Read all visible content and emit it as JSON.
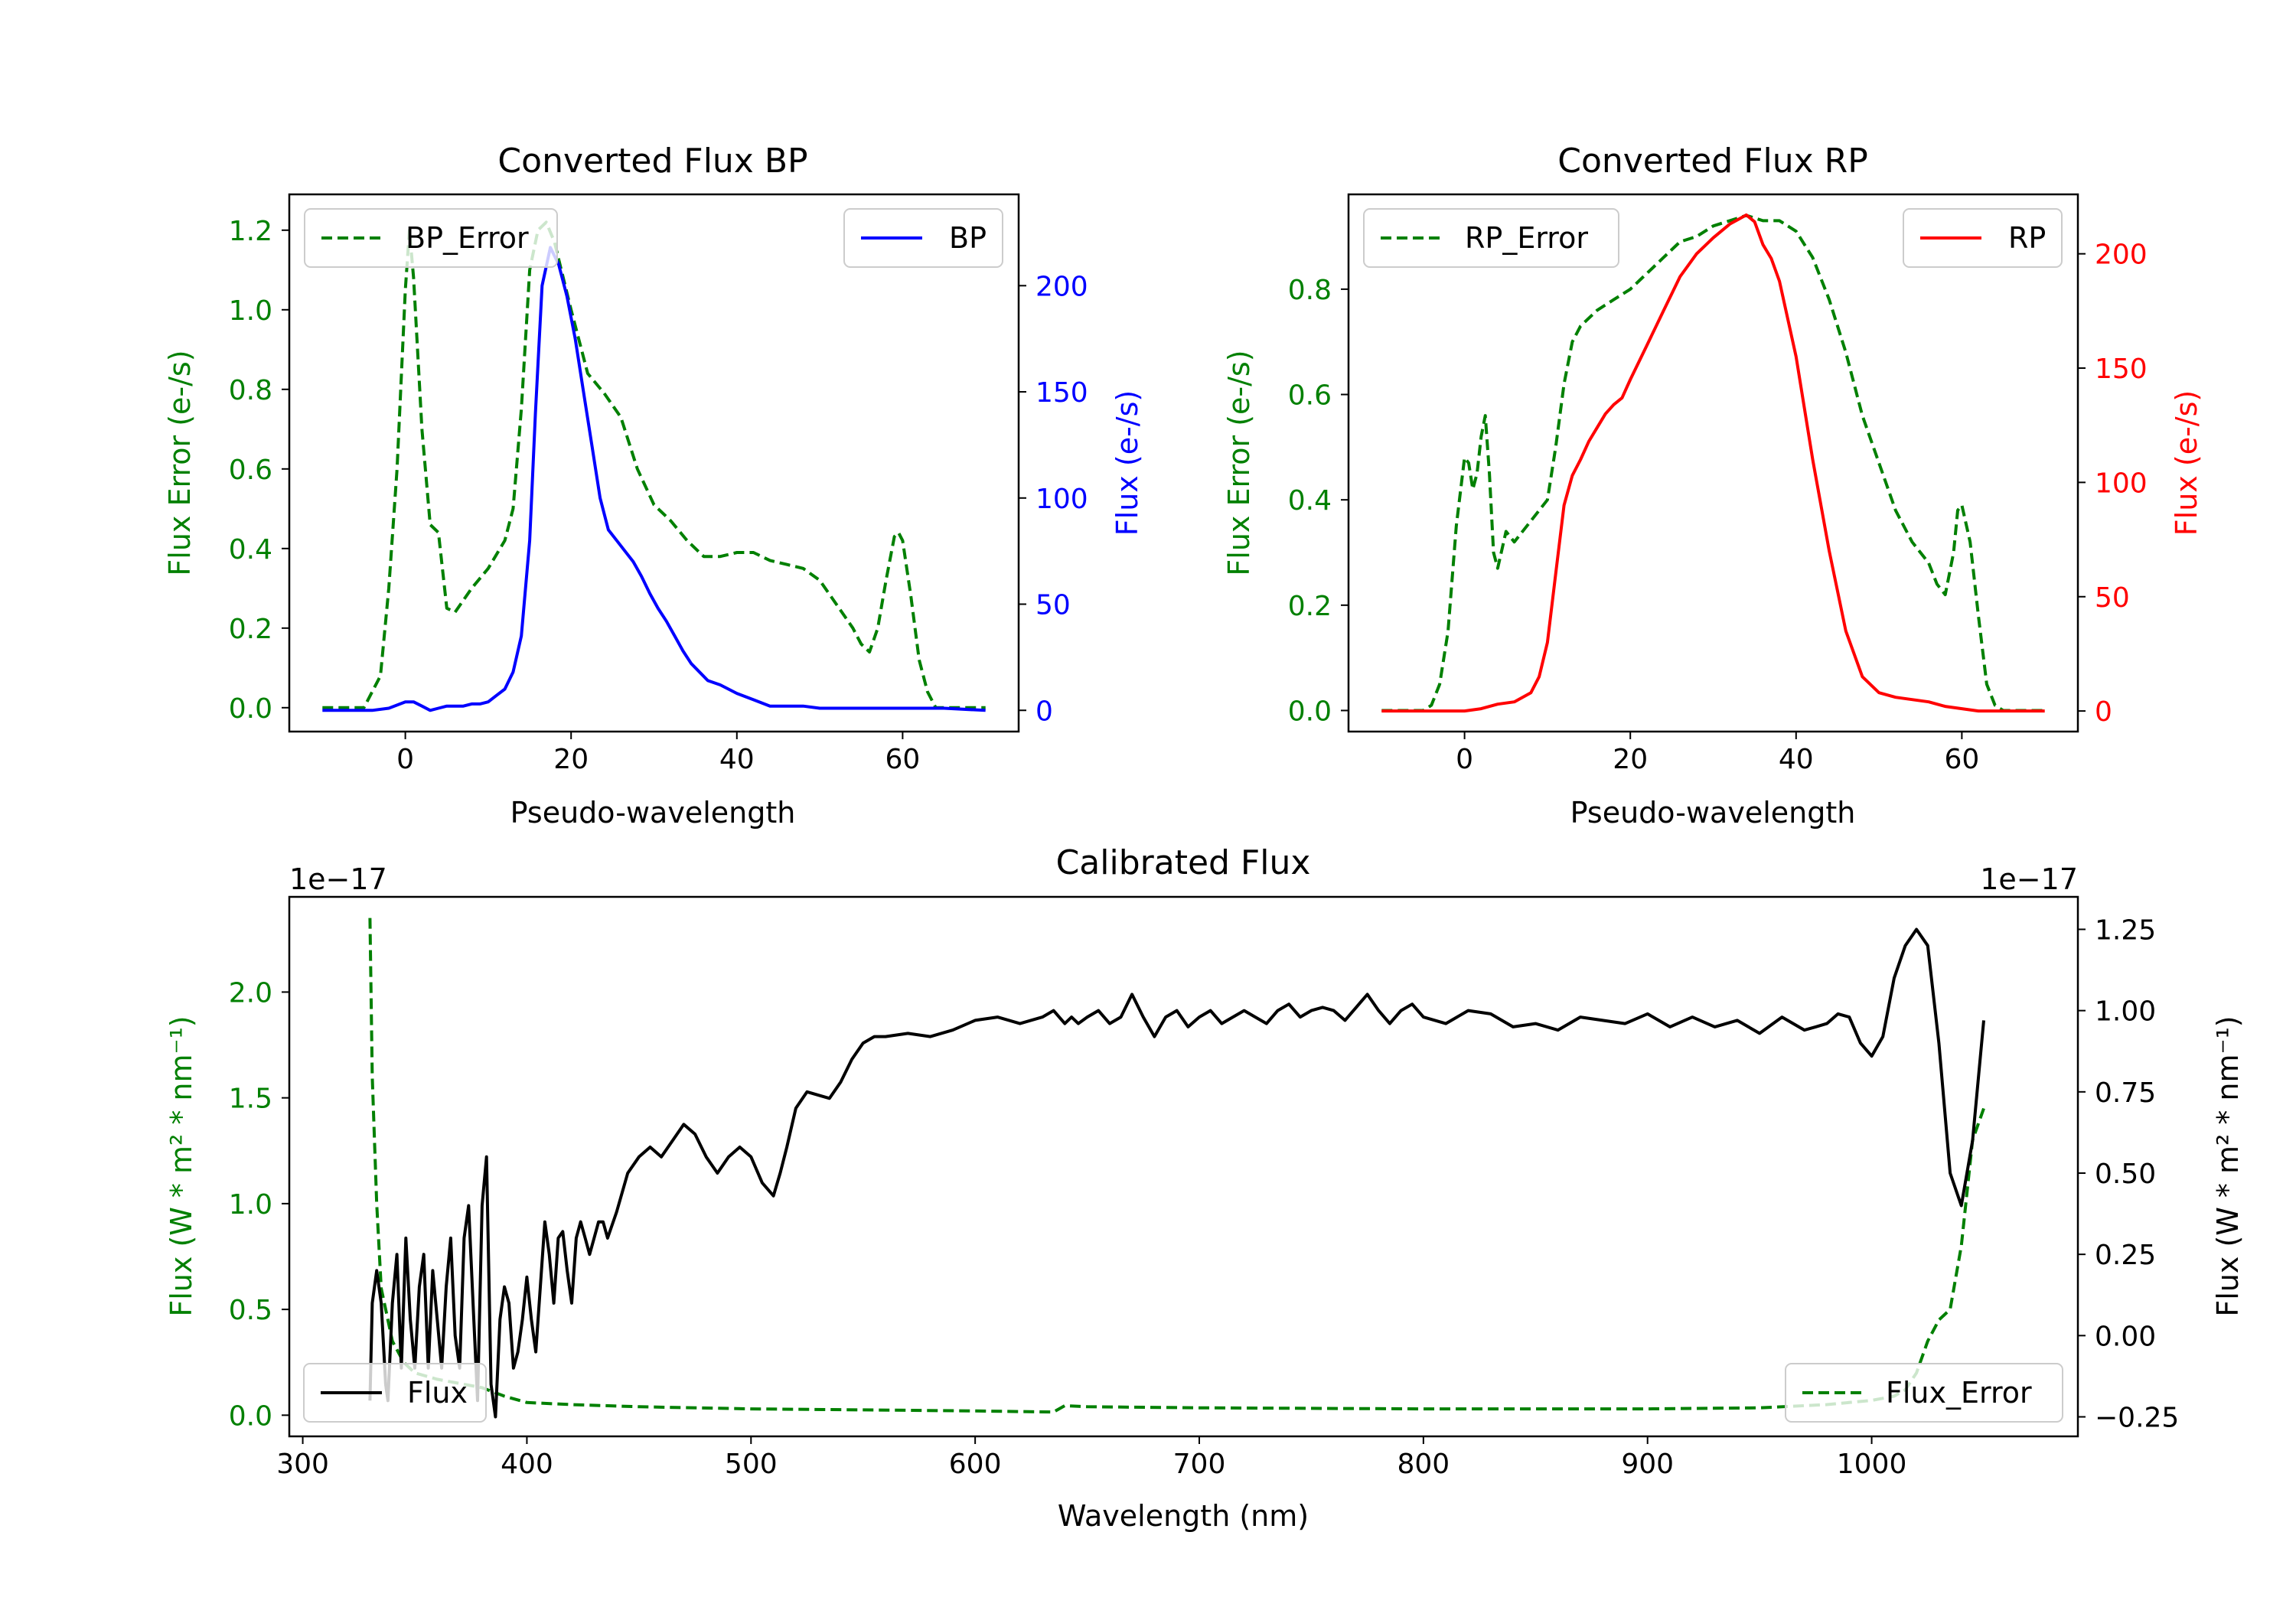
{
  "figure": {
    "colors": {
      "green": "#008000",
      "blue": "#0000ff",
      "red": "#ff0000",
      "black": "#000000"
    }
  },
  "chart_data": [
    {
      "type": "line",
      "title": "Converted Flux BP",
      "xlabel": "Pseudo-wavelength",
      "ylabel_left": "Flux Error (e-/s)",
      "ylabel_right": "Flux (e-/s)",
      "xlim": [
        -14,
        74
      ],
      "ylim_left": [
        -0.06,
        1.29
      ],
      "ylim_right": [
        -10,
        243
      ],
      "xticks": [
        "0",
        "20",
        "40",
        "60"
      ],
      "yticks_left": [
        "0.0",
        "0.2",
        "0.4",
        "0.6",
        "0.8",
        "1.0",
        "1.2"
      ],
      "yticks_right": [
        "0",
        "50",
        "100",
        "150",
        "200"
      ],
      "legend_left": {
        "label": "BP_Error",
        "placement": "upper left"
      },
      "legend_right": {
        "label": "BP",
        "placement": "upper right"
      },
      "series": [
        {
          "name": "BP_Error",
          "axis": "left",
          "color": "#008000",
          "style": "dashed",
          "x": [
            -10,
            -5,
            -3,
            -2,
            -1,
            0,
            0.5,
            1,
            2,
            3,
            4,
            5,
            6,
            8,
            10,
            12,
            13,
            14,
            15,
            16,
            17,
            18,
            20,
            22,
            24,
            26,
            28,
            30,
            32,
            34,
            36,
            38,
            40,
            42,
            44,
            46,
            48,
            50,
            52,
            54,
            55,
            56,
            57,
            58,
            59,
            59.5,
            60,
            61,
            62,
            63,
            64,
            65,
            70
          ],
          "y": [
            0.0,
            0.0,
            0.08,
            0.3,
            0.6,
            1.05,
            1.2,
            1.08,
            0.7,
            0.46,
            0.44,
            0.25,
            0.24,
            0.3,
            0.35,
            0.42,
            0.5,
            0.75,
            1.1,
            1.2,
            1.22,
            1.17,
            1.0,
            0.84,
            0.79,
            0.73,
            0.6,
            0.51,
            0.47,
            0.42,
            0.38,
            0.38,
            0.39,
            0.39,
            0.37,
            0.36,
            0.35,
            0.32,
            0.26,
            0.2,
            0.16,
            0.14,
            0.2,
            0.32,
            0.43,
            0.44,
            0.42,
            0.28,
            0.12,
            0.04,
            0.0,
            0.0,
            0.0
          ]
        },
        {
          "name": "BP",
          "axis": "right",
          "color": "#0000ff",
          "style": "solid",
          "x": [
            -10,
            -4,
            -2,
            0,
            1,
            2,
            3,
            4,
            5,
            6,
            7,
            8,
            9,
            10,
            11,
            12,
            13,
            14,
            15,
            15.7,
            16.5,
            17.5,
            18.5,
            19.5,
            20.5,
            21.5,
            22.5,
            23.5,
            24.5,
            25.5,
            26.5,
            27.5,
            28.5,
            29.5,
            30.5,
            31.5,
            32.5,
            33.5,
            34.5,
            35.5,
            36.5,
            38,
            40,
            42,
            44,
            46,
            48,
            50,
            55,
            60,
            65,
            70
          ],
          "y": [
            0,
            0,
            1,
            4,
            4,
            2,
            0,
            1,
            2,
            2,
            2,
            3,
            3,
            4,
            7,
            10,
            18,
            35,
            80,
            140,
            200,
            218,
            210,
            195,
            175,
            150,
            125,
            100,
            85,
            80,
            75,
            70,
            63,
            55,
            48,
            42,
            35,
            28,
            22,
            18,
            14,
            12,
            8,
            5,
            2,
            2,
            2,
            1,
            1,
            1,
            1,
            0
          ]
        }
      ]
    },
    {
      "type": "line",
      "title": "Converted Flux RP",
      "xlabel": "Pseudo-wavelength",
      "ylabel_left": "Flux Error (e-/s)",
      "ylabel_right": "Flux (e-/s)",
      "xlim": [
        -14,
        74
      ],
      "ylim_left": [
        -0.04,
        0.98
      ],
      "ylim_right": [
        -9,
        226
      ],
      "xticks": [
        "0",
        "20",
        "40",
        "60"
      ],
      "yticks_left": [
        "0.0",
        "0.2",
        "0.4",
        "0.6",
        "0.8"
      ],
      "yticks_right": [
        "0",
        "50",
        "100",
        "150",
        "200"
      ],
      "legend_left": {
        "label": "RP_Error",
        "placement": "upper left"
      },
      "legend_right": {
        "label": "RP",
        "placement": "upper right"
      },
      "series": [
        {
          "name": "RP_Error",
          "axis": "right_none",
          "axis_ref": "left",
          "color": "#008000",
          "style": "dashed",
          "x": [
            -10,
            -5,
            -4,
            -3,
            -2,
            -1,
            0,
            0.5,
            1,
            1.5,
            2,
            2.5,
            3,
            3.5,
            4,
            5,
            6,
            8,
            10,
            11,
            12,
            13,
            14,
            16,
            18,
            20,
            22,
            24,
            26,
            28,
            30,
            32,
            34,
            36,
            38,
            40,
            42,
            44,
            46,
            48,
            50,
            52,
            54,
            56,
            57,
            58,
            59,
            59.5,
            60,
            61,
            62,
            63,
            64,
            65,
            70
          ],
          "y": [
            0.0,
            0.0,
            0.01,
            0.05,
            0.15,
            0.35,
            0.48,
            0.47,
            0.42,
            0.45,
            0.52,
            0.56,
            0.45,
            0.3,
            0.27,
            0.34,
            0.32,
            0.36,
            0.4,
            0.5,
            0.62,
            0.7,
            0.73,
            0.76,
            0.78,
            0.8,
            0.83,
            0.86,
            0.89,
            0.9,
            0.92,
            0.93,
            0.94,
            0.93,
            0.93,
            0.91,
            0.86,
            0.78,
            0.68,
            0.56,
            0.47,
            0.38,
            0.32,
            0.28,
            0.24,
            0.22,
            0.3,
            0.38,
            0.39,
            0.32,
            0.18,
            0.05,
            0.01,
            0.0,
            0.0
          ]
        },
        {
          "name": "RP",
          "axis": "right",
          "color": "#ff0000",
          "style": "solid",
          "x": [
            -10,
            -5,
            0,
            2,
            4,
            6,
            8,
            9,
            10,
            11,
            12,
            13,
            14,
            15,
            16,
            17,
            18,
            19,
            20,
            22,
            24,
            26,
            28,
            30,
            32,
            33,
            34,
            35,
            36,
            37,
            38,
            40,
            42,
            44,
            46,
            48,
            50,
            52,
            54,
            56,
            58,
            60,
            62,
            65,
            70
          ],
          "y": [
            0,
            0,
            0,
            1,
            3,
            4,
            8,
            15,
            30,
            60,
            90,
            103,
            110,
            118,
            124,
            130,
            134,
            137,
            145,
            160,
            175,
            190,
            200,
            207,
            213,
            215,
            217,
            214,
            204,
            198,
            188,
            155,
            110,
            70,
            35,
            15,
            8,
            6,
            5,
            4,
            2,
            1,
            0,
            0,
            0
          ]
        }
      ]
    },
    {
      "type": "line",
      "title": "Calibrated Flux",
      "xlabel": "Wavelength (nm)",
      "ylabel_left": "Flux (W * m² * nm⁻¹)",
      "ylabel_right": "Flux (W * m² * nm⁻¹)",
      "xlim": [
        294,
        1092
      ],
      "ylim_left": [
        -0.1,
        2.45
      ],
      "ylim_right": [
        -0.31,
        1.35
      ],
      "xticks": [
        "300",
        "400",
        "500",
        "600",
        "700",
        "800",
        "900",
        "1000"
      ],
      "yticks_left": [
        "0.0",
        "0.5",
        "1.0",
        "1.5",
        "2.0"
      ],
      "yticks_right": [
        "−0.25",
        "0.00",
        "0.25",
        "0.50",
        "0.75",
        "1.00",
        "1.25"
      ],
      "offset_left": "1e−17",
      "offset_right": "1e−17",
      "legend_left": {
        "label": "Flux",
        "placement": "lower left"
      },
      "legend_right": {
        "label": "Flux_Error",
        "placement": "lower right"
      },
      "series": [
        {
          "name": "Flux_Error",
          "axis": "left",
          "color": "#008000",
          "style": "dashed",
          "x": [
            330,
            331,
            333,
            335,
            340,
            345,
            350,
            360,
            370,
            380,
            390,
            400,
            420,
            450,
            500,
            550,
            600,
            635,
            640,
            650,
            700,
            800,
            900,
            950,
            980,
            1000,
            1010,
            1015,
            1020,
            1025,
            1030,
            1035,
            1040,
            1045,
            1050
          ],
          "y": [
            2.35,
            1.6,
            1.0,
            0.6,
            0.35,
            0.25,
            0.2,
            0.17,
            0.15,
            0.13,
            0.09,
            0.06,
            0.05,
            0.04,
            0.03,
            0.025,
            0.02,
            0.015,
            0.045,
            0.04,
            0.035,
            0.03,
            0.03,
            0.035,
            0.05,
            0.07,
            0.09,
            0.12,
            0.2,
            0.35,
            0.45,
            0.5,
            0.8,
            1.3,
            1.45
          ]
        },
        {
          "name": "Flux",
          "axis": "right",
          "color": "#000000",
          "style": "solid",
          "x": [
            330,
            331,
            333,
            335,
            337,
            338,
            340,
            342,
            344,
            346,
            348,
            350,
            352,
            354,
            356,
            358,
            360,
            362,
            364,
            366,
            368,
            370,
            372,
            374,
            376,
            378,
            380,
            382,
            384,
            386,
            388,
            390,
            392,
            394,
            396,
            398,
            400,
            402,
            404,
            406,
            408,
            410,
            412,
            414,
            416,
            418,
            420,
            422,
            424,
            426,
            428,
            430,
            432,
            434,
            436,
            440,
            445,
            450,
            455,
            460,
            465,
            470,
            475,
            480,
            485,
            490,
            495,
            500,
            505,
            510,
            513,
            516,
            520,
            525,
            530,
            535,
            540,
            545,
            550,
            555,
            560,
            570,
            580,
            590,
            600,
            610,
            620,
            630,
            635,
            640,
            643,
            646,
            650,
            655,
            660,
            665,
            670,
            675,
            680,
            685,
            690,
            695,
            700,
            705,
            710,
            715,
            720,
            725,
            730,
            735,
            740,
            745,
            750,
            755,
            760,
            765,
            770,
            775,
            780,
            785,
            790,
            795,
            800,
            810,
            820,
            830,
            840,
            850,
            860,
            870,
            880,
            890,
            900,
            910,
            920,
            930,
            940,
            950,
            960,
            970,
            975,
            980,
            985,
            990,
            995,
            1000,
            1005,
            1010,
            1015,
            1020,
            1025,
            1030,
            1035,
            1040,
            1045,
            1050
          ],
          "y": [
            -0.2,
            0.1,
            0.2,
            0.1,
            -0.15,
            -0.2,
            0.1,
            0.25,
            -0.1,
            0.3,
            0.05,
            -0.1,
            0.15,
            0.25,
            -0.1,
            0.2,
            0.05,
            -0.1,
            0.15,
            0.3,
            0.0,
            -0.1,
            0.3,
            0.4,
            0.1,
            -0.2,
            0.4,
            0.55,
            -0.15,
            -0.25,
            0.05,
            0.15,
            0.1,
            -0.1,
            -0.05,
            0.05,
            0.18,
            0.05,
            -0.05,
            0.15,
            0.35,
            0.25,
            0.1,
            0.3,
            0.32,
            0.2,
            0.1,
            0.3,
            0.35,
            0.3,
            0.25,
            0.3,
            0.35,
            0.35,
            0.3,
            0.38,
            0.5,
            0.55,
            0.58,
            0.55,
            0.6,
            0.65,
            0.62,
            0.55,
            0.5,
            0.55,
            0.58,
            0.55,
            0.47,
            0.43,
            0.5,
            0.58,
            0.7,
            0.75,
            0.74,
            0.73,
            0.78,
            0.85,
            0.9,
            0.92,
            0.92,
            0.93,
            0.92,
            0.94,
            0.97,
            0.98,
            0.96,
            0.98,
            1.0,
            0.96,
            0.98,
            0.96,
            0.98,
            1.0,
            0.96,
            0.98,
            1.05,
            0.98,
            0.92,
            0.98,
            1.0,
            0.95,
            0.98,
            1.0,
            0.96,
            0.98,
            1.0,
            0.98,
            0.96,
            1.0,
            1.02,
            0.98,
            1.0,
            1.01,
            1.0,
            0.97,
            1.01,
            1.05,
            1.0,
            0.96,
            1.0,
            1.02,
            0.98,
            0.96,
            1.0,
            0.99,
            0.95,
            0.96,
            0.94,
            0.98,
            0.97,
            0.96,
            0.99,
            0.95,
            0.98,
            0.95,
            0.97,
            0.93,
            0.98,
            0.94,
            0.95,
            0.96,
            0.99,
            0.98,
            0.9,
            0.86,
            0.92,
            1.1,
            1.2,
            1.25,
            1.2,
            0.9,
            0.5,
            0.4,
            0.6,
            0.97
          ]
        }
      ]
    }
  ]
}
